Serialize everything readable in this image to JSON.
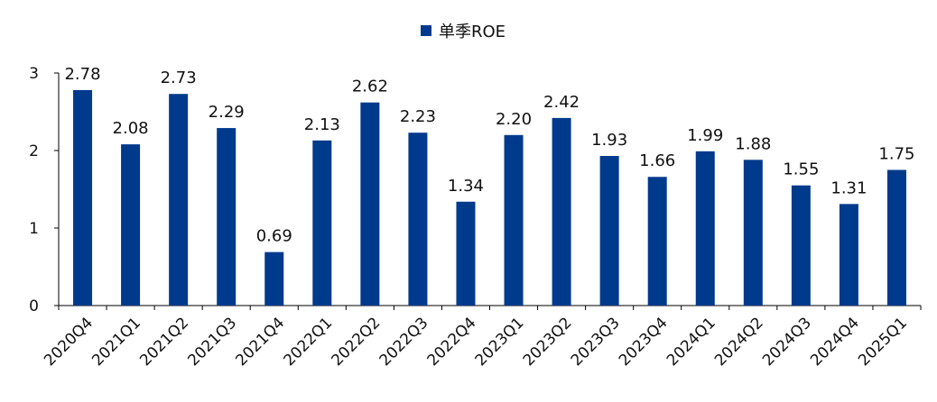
{
  "chart_data": {
    "type": "bar",
    "title": "",
    "xlabel": "",
    "ylabel": "",
    "ylim": [
      0,
      3
    ],
    "yticks": [
      0,
      1,
      2,
      3
    ],
    "grid": false,
    "legend_position": "top-center",
    "categories": [
      "2020Q4",
      "2021Q1",
      "2021Q2",
      "2021Q3",
      "2021Q4",
      "2022Q1",
      "2022Q2",
      "2022Q3",
      "2022Q4",
      "2023Q1",
      "2023Q2",
      "2023Q3",
      "2023Q4",
      "2024Q1",
      "2024Q2",
      "2024Q3",
      "2024Q4",
      "2025Q1"
    ],
    "series": [
      {
        "name": "单季ROE",
        "color": "#003a8c",
        "values": [
          2.78,
          2.08,
          2.73,
          2.29,
          0.69,
          2.13,
          2.62,
          2.23,
          1.34,
          2.2,
          2.42,
          1.93,
          1.66,
          1.99,
          1.88,
          1.55,
          1.31,
          1.75
        ],
        "labels": [
          "2.78",
          "2.08",
          "2.73",
          "2.29",
          "0.69",
          "2.13",
          "2.62",
          "2.23",
          "1.34",
          "2.20",
          "2.42",
          "1.93",
          "1.66",
          "1.99",
          "1.88",
          "1.55",
          "1.31",
          "1.75"
        ]
      }
    ]
  }
}
